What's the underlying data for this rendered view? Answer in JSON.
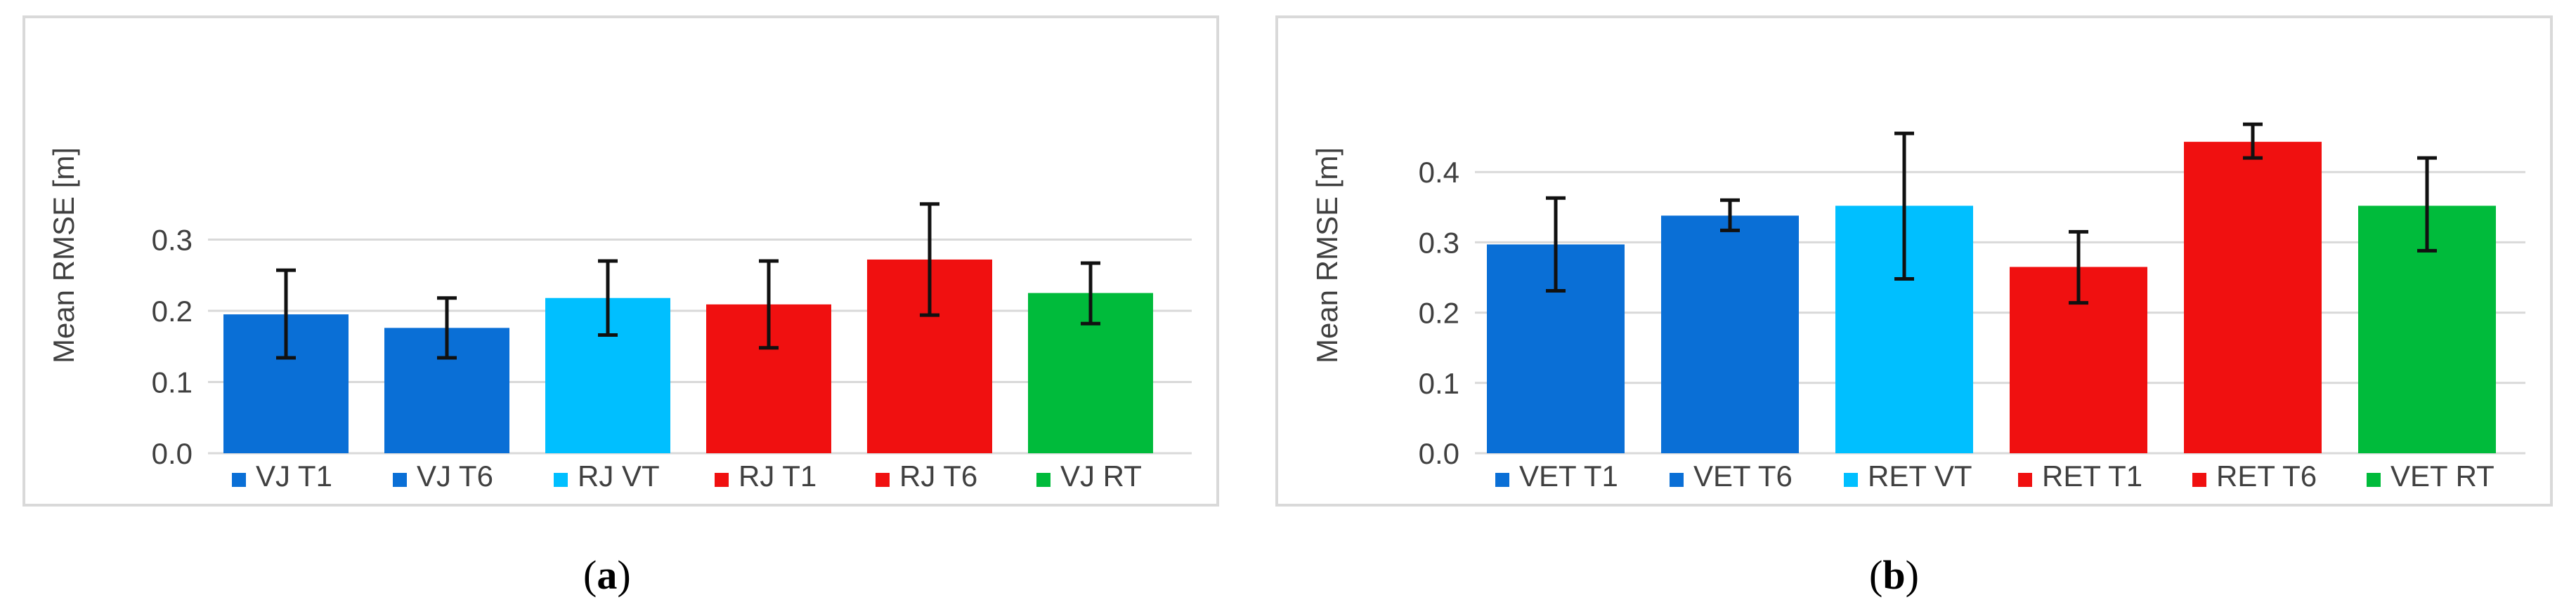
{
  "chart_data": [
    {
      "type": "bar",
      "panel_label": "a",
      "ylabel": "Mean RMSE [m]",
      "ylim": [
        0,
        0.35
      ],
      "yticks": [
        0.0,
        0.1,
        0.2,
        0.3
      ],
      "ytick_labels": [
        "0.0",
        "0.1",
        "0.2",
        "0.3"
      ],
      "grid": true,
      "legend_position": "bottom",
      "categories": [
        "VJ T1",
        "VJ T6",
        "RJ VT",
        "RJ T1",
        "RJ T6",
        "VJ RT"
      ],
      "values": [
        0.195,
        0.176,
        0.218,
        0.209,
        0.272,
        0.225
      ],
      "error_low": [
        0.134,
        0.134,
        0.166,
        0.148,
        0.194,
        0.182
      ],
      "error_high": [
        0.257,
        0.218,
        0.27,
        0.27,
        0.35,
        0.267
      ],
      "colors": [
        "#0a6fd6",
        "#0a6fd6",
        "#00bfff",
        "#f01010",
        "#f01010",
        "#00bb3b"
      ]
    },
    {
      "type": "bar",
      "panel_label": "b",
      "ylabel": "Mean RMSE [m]",
      "ylim": [
        0,
        0.48
      ],
      "yticks": [
        0.0,
        0.1,
        0.2,
        0.3,
        0.4
      ],
      "ytick_labels": [
        "0.0",
        "0.1",
        "0.2",
        "0.3",
        "0.4"
      ],
      "grid": true,
      "legend_position": "bottom",
      "categories": [
        "VET T1",
        "VET T6",
        "RET VT",
        "RET T1",
        "RET T6",
        "VET RT"
      ],
      "values": [
        0.297,
        0.338,
        0.352,
        0.265,
        0.443,
        0.352
      ],
      "error_low": [
        0.231,
        0.317,
        0.248,
        0.214,
        0.42,
        0.288
      ],
      "error_high": [
        0.363,
        0.36,
        0.455,
        0.315,
        0.468,
        0.42
      ],
      "colors": [
        "#0a6fd6",
        "#0a6fd6",
        "#00bfff",
        "#f01010",
        "#f01010",
        "#00bb3b"
      ]
    }
  ],
  "captions": {
    "a": {
      "open": "(",
      "letter": "a",
      "close": ")"
    },
    "b": {
      "open": "(",
      "letter": "b",
      "close": ")"
    }
  },
  "styles": {
    "gridline_color": "#d9d9d9",
    "errorbar_color": "#111111",
    "text_color": "#404040"
  }
}
